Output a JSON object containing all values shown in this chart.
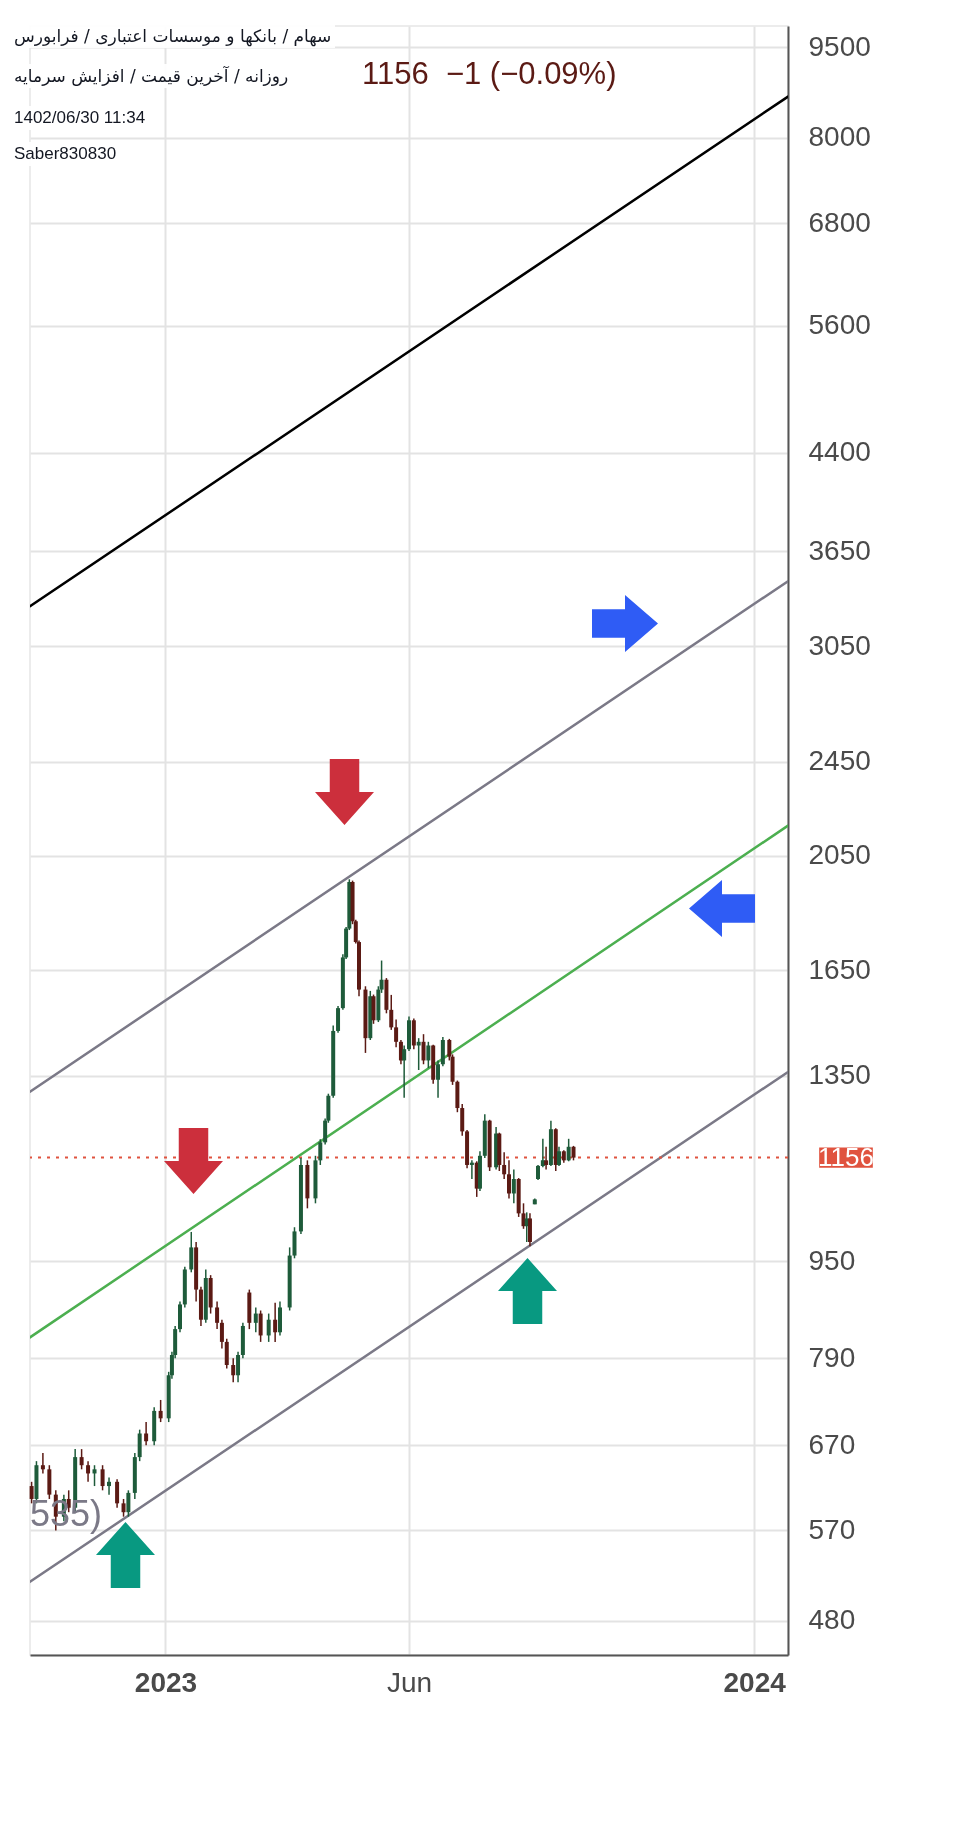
{
  "chart_data": {
    "type": "candlestick",
    "title": "سهام / بانکها و موسسات اعتباری / فرابورس",
    "subtitle": "روزانه / آخرین قیمت / افزایش سرمایه",
    "annotations": [
      "1156  −1 (−0.09%)",
      "1402/06/30 11:34",
      "Saber830830",
      "535)"
    ],
    "x": [
      "2022-10-10",
      "2022-10-13",
      "2022-10-17",
      "2022-10-21",
      "2022-10-25",
      "2022-10-30",
      "2022-11-02",
      "2022-11-06",
      "2022-11-10",
      "2022-11-14",
      "2022-11-18",
      "2022-11-23",
      "2022-11-27",
      "2022-12-02",
      "2022-12-06",
      "2022-12-09",
      "2022-12-13",
      "2022-12-16",
      "2022-12-20",
      "2022-12-25",
      "2022-12-29",
      "2023-01-03",
      "2023-01-05",
      "2023-01-07",
      "2023-01-10",
      "2023-01-13",
      "2023-01-17",
      "2023-01-20",
      "2023-01-23",
      "2023-01-26",
      "2023-01-29",
      "2023-02-02",
      "2023-02-05",
      "2023-02-08",
      "2023-02-12",
      "2023-02-15",
      "2023-02-18",
      "2023-02-22",
      "2023-02-26",
      "2023-03-01",
      "2023-03-06",
      "2023-03-10",
      "2023-03-13",
      "2023-03-19",
      "2023-03-22",
      "2023-03-26",
      "2023-03-30",
      "2023-04-04",
      "2023-04-07",
      "2023-04-10",
      "2023-04-12",
      "2023-04-15",
      "2023-04-18",
      "2023-04-21",
      "2023-04-23",
      "2023-04-25",
      "2023-04-27",
      "2023-04-29",
      "2023-05-01",
      "2023-05-05",
      "2023-05-08",
      "2023-05-10",
      "2023-05-13",
      "2023-05-15",
      "2023-05-18",
      "2023-05-21",
      "2023-05-24",
      "2023-05-27",
      "2023-05-29",
      "2023-06-01",
      "2023-06-04",
      "2023-06-07",
      "2023-06-10",
      "2023-06-13",
      "2023-06-16",
      "2023-06-19",
      "2023-06-22",
      "2023-06-26",
      "2023-06-28",
      "2023-07-01",
      "2023-07-04",
      "2023-07-07",
      "2023-07-10",
      "2023-07-13",
      "2023-07-15",
      "2023-07-18",
      "2023-07-21",
      "2023-07-25",
      "2023-07-27",
      "2023-07-30",
      "2023-08-02",
      "2023-08-05",
      "2023-08-08",
      "2023-08-11",
      "2023-08-13",
      "2023-08-15",
      "2023-08-18",
      "2023-08-20",
      "2023-08-23",
      "2023-08-25",
      "2023-08-28",
      "2023-08-31",
      "2023-09-02",
      "2023-09-05",
      "2023-09-08",
      "2023-09-11"
    ],
    "ohlc": [
      [
        620,
        625,
        600,
        605
      ],
      [
        605,
        650,
        600,
        645
      ],
      [
        645,
        660,
        635,
        640
      ],
      [
        640,
        645,
        605,
        610
      ],
      [
        610,
        615,
        570,
        585
      ],
      [
        585,
        610,
        580,
        605
      ],
      [
        605,
        615,
        590,
        595
      ],
      [
        595,
        665,
        590,
        655
      ],
      [
        655,
        665,
        640,
        645
      ],
      [
        645,
        650,
        625,
        635
      ],
      [
        635,
        645,
        620,
        640
      ],
      [
        640,
        645,
        615,
        620
      ],
      [
        620,
        630,
        610,
        625
      ],
      [
        625,
        628,
        595,
        600
      ],
      [
        600,
        605,
        585,
        590
      ],
      [
        590,
        615,
        585,
        612
      ],
      [
        612,
        660,
        605,
        655
      ],
      [
        655,
        690,
        650,
        685
      ],
      [
        685,
        700,
        670,
        675
      ],
      [
        675,
        720,
        670,
        715
      ],
      [
        715,
        730,
        700,
        705
      ],
      [
        705,
        770,
        700,
        765
      ],
      [
        765,
        800,
        760,
        795
      ],
      [
        795,
        840,
        790,
        835
      ],
      [
        835,
        880,
        830,
        875
      ],
      [
        875,
        940,
        870,
        935
      ],
      [
        935,
        1004,
        930,
        975
      ],
      [
        975,
        985,
        880,
        900
      ],
      [
        900,
        905,
        840,
        850
      ],
      [
        850,
        935,
        845,
        920
      ],
      [
        920,
        925,
        860,
        870
      ],
      [
        870,
        880,
        835,
        845
      ],
      [
        845,
        850,
        805,
        815
      ],
      [
        815,
        820,
        775,
        780
      ],
      [
        780,
        790,
        755,
        765
      ],
      [
        765,
        800,
        755,
        795
      ],
      [
        795,
        845,
        790,
        840
      ],
      [
        895,
        900,
        835,
        845
      ],
      [
        845,
        870,
        830,
        860
      ],
      [
        860,
        865,
        815,
        825
      ],
      [
        825,
        860,
        815,
        850
      ],
      [
        850,
        878,
        815,
        830
      ],
      [
        830,
        880,
        825,
        870
      ],
      [
        870,
        975,
        865,
        960
      ],
      [
        960,
        1013,
        955,
        1005
      ],
      [
        1005,
        1155,
        1000,
        1140
      ],
      [
        1140,
        1150,
        1050,
        1070
      ],
      [
        1070,
        1160,
        1060,
        1150
      ],
      [
        1150,
        1197,
        1140,
        1190
      ],
      [
        1190,
        1245,
        1185,
        1240
      ],
      [
        1240,
        1305,
        1235,
        1300
      ],
      [
        1300,
        1485,
        1295,
        1470
      ],
      [
        1470,
        1541,
        1465,
        1535
      ],
      [
        1535,
        1700,
        1530,
        1690
      ],
      [
        1690,
        1790,
        1685,
        1785
      ],
      [
        1785,
        1960,
        1780,
        1950
      ],
      [
        1950,
        1955,
        1800,
        1810
      ],
      [
        1810,
        1815,
        1735,
        1740
      ],
      [
        1740,
        1745,
        1570,
        1590
      ],
      [
        1590,
        1600,
        1410,
        1450
      ],
      [
        1450,
        1586,
        1445,
        1570
      ],
      [
        1570,
        1575,
        1490,
        1500
      ],
      [
        1500,
        1600,
        1495,
        1590
      ],
      [
        1590,
        1680,
        1580,
        1620
      ],
      [
        1620,
        1625,
        1520,
        1530
      ],
      [
        1530,
        1574,
        1473,
        1480
      ],
      [
        1480,
        1502,
        1425,
        1440
      ],
      [
        1440,
        1445,
        1380,
        1390
      ],
      [
        1390,
        1430,
        1295,
        1420
      ],
      [
        1420,
        1511,
        1415,
        1500
      ],
      [
        1500,
        1505,
        1420,
        1430
      ],
      [
        1430,
        1450,
        1365,
        1440
      ],
      [
        1440,
        1461,
        1380,
        1390
      ],
      [
        1390,
        1440,
        1370,
        1430
      ],
      [
        1430,
        1432,
        1330,
        1340
      ],
      [
        1340,
        1390,
        1295,
        1380
      ],
      [
        1380,
        1453,
        1375,
        1445
      ],
      [
        1445,
        1448,
        1390,
        1400
      ],
      [
        1400,
        1406,
        1327,
        1335
      ],
      [
        1335,
        1338,
        1260,
        1270
      ],
      [
        1270,
        1280,
        1205,
        1215
      ],
      [
        1215,
        1218,
        1133,
        1140
      ],
      [
        1140,
        1150,
        1110,
        1145
      ],
      [
        1145,
        1148,
        1073,
        1090
      ],
      [
        1090,
        1170,
        1085,
        1160
      ],
      [
        1160,
        1255,
        1155,
        1240
      ],
      [
        1240,
        1242,
        1127,
        1135
      ],
      [
        1135,
        1225,
        1130,
        1210
      ],
      [
        1210,
        1212,
        1127,
        1140
      ],
      [
        1140,
        1168,
        1110,
        1120
      ],
      [
        1120,
        1150,
        1070,
        1080
      ],
      [
        1080,
        1130,
        1060,
        1110
      ],
      [
        1110,
        1112,
        1033,
        1040
      ],
      [
        1040,
        1060,
        1010,
        1015
      ],
      [
        1015,
        1042,
        985,
        1030
      ],
      [
        1030,
        1040,
        977,
        985
      ],
      [
        1058,
        1070,
        1058,
        1068
      ],
      [
        1110,
        1140,
        1108,
        1138
      ],
      [
        1138,
        1198,
        1135,
        1150
      ],
      [
        1150,
        1180,
        1130,
        1140
      ],
      [
        1140,
        1240,
        1138,
        1220
      ],
      [
        1220,
        1222,
        1127,
        1140
      ],
      [
        1140,
        1180,
        1138,
        1170
      ],
      [
        1170,
        1172,
        1145,
        1150
      ],
      [
        1150,
        1198,
        1148,
        1180
      ],
      [
        1180,
        1182,
        1150,
        1156
      ]
    ],
    "colors": [
      "#5b1a14",
      "#1e5b3a",
      "#5b1a14",
      "#5b1a14",
      "#5b1a14",
      "#1e5b3a",
      "#5b1a14",
      "#1e5b3a",
      "#5b1a14",
      "#5b1a14",
      "#1e5b3a",
      "#5b1a14",
      "#1e5b3a",
      "#5b1a14",
      "#5b1a14",
      "#1e5b3a",
      "#1e5b3a",
      "#1e5b3a",
      "#5b1a14",
      "#1e5b3a",
      "#5b1a14",
      "#1e5b3a",
      "#1e5b3a",
      "#1e5b3a",
      "#1e5b3a",
      "#1e5b3a",
      "#1e5b3a",
      "#5b1a14",
      "#5b1a14",
      "#1e5b3a",
      "#5b1a14",
      "#5b1a14",
      "#5b1a14",
      "#5b1a14",
      "#5b1a14",
      "#1e5b3a",
      "#1e5b3a",
      "#5b1a14",
      "#1e5b3a",
      "#5b1a14",
      "#1e5b3a",
      "#5b1a14",
      "#1e5b3a",
      "#1e5b3a",
      "#1e5b3a",
      "#1e5b3a",
      "#5b1a14",
      "#1e5b3a",
      "#1e5b3a",
      "#1e5b3a",
      "#1e5b3a",
      "#1e5b3a",
      "#1e5b3a",
      "#1e5b3a",
      "#1e5b3a",
      "#1e5b3a",
      "#5b1a14",
      "#5b1a14",
      "#5b1a14",
      "#5b1a14",
      "#1e5b3a",
      "#5b1a14",
      "#1e5b3a",
      "#1e5b3a",
      "#5b1a14",
      "#5b1a14",
      "#5b1a14",
      "#5b1a14",
      "#1e5b3a",
      "#1e5b3a",
      "#5b1a14",
      "#1e5b3a",
      "#5b1a14",
      "#1e5b3a",
      "#5b1a14",
      "#1e5b3a",
      "#1e5b3a",
      "#5b1a14",
      "#5b1a14",
      "#5b1a14",
      "#5b1a14",
      "#5b1a14",
      "#1e5b3a",
      "#5b1a14",
      "#1e5b3a",
      "#1e5b3a",
      "#5b1a14",
      "#1e5b3a",
      "#5b1a14",
      "#5b1a14",
      "#5b1a14",
      "#1e5b3a",
      "#5b1a14",
      "#5b1a14",
      "#1e5b3a",
      "#5b1a14",
      "#1e5b3a",
      "#1e5b3a",
      "#1e5b3a",
      "#5b1a14",
      "#1e5b3a",
      "#5b1a14",
      "#1e5b3a",
      "#5b1a14",
      "#1e5b3a",
      "#5b1a14"
    ],
    "series": [
      {
        "type": "line",
        "x": [
          "2022-10-09",
          "2024-01-22"
        ],
        "values": [
          3290,
          8650
        ],
        "color": "#000000"
      },
      {
        "type": "line",
        "x": [
          "2022-10-09",
          "2024-01-22"
        ],
        "values": [
          1310,
          3450
        ],
        "color": "#7b7987"
      },
      {
        "type": "line",
        "x": [
          "2022-10-09",
          "2024-01-22"
        ],
        "values": [
          822,
          2170
        ],
        "color": "#4caf50"
      },
      {
        "type": "line",
        "x": [
          "2022-10-09",
          "2024-01-22"
        ],
        "values": [
          517,
          1360
        ],
        "color": "#7b7987"
      }
    ],
    "ref_lines": [
      {
        "axis": "y",
        "value": 1156,
        "label": "1156",
        "color": "#e0533f",
        "line_style": "dotted"
      }
    ],
    "log": true,
    "xlim": [
      "2022-10-09",
      "2024-01-22"
    ],
    "xticks": [
      {
        "value": "2023-01-01",
        "label": "2023"
      },
      {
        "value": "2023-06-01",
        "label": "Jun"
      },
      {
        "value": "2024-01-01",
        "label": "2024"
      }
    ],
    "ylim": [
      450,
      9890
    ],
    "yticks": [
      480,
      570,
      670,
      790,
      950,
      1350,
      1650,
      2050,
      2450,
      3050,
      3650,
      4400,
      5600,
      6800,
      8000,
      9500
    ],
    "grid": true
  }
}
